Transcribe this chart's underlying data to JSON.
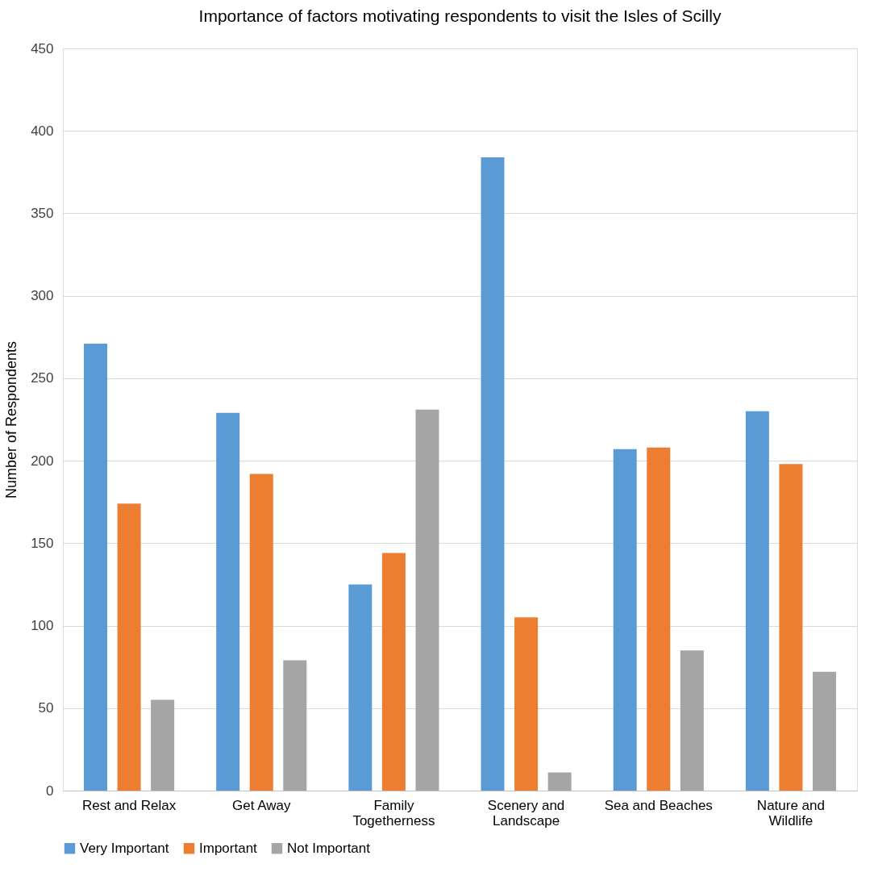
{
  "chart_data": {
    "type": "bar",
    "title": "Importance of factors motivating respondents to visit the Isles of Scilly",
    "ylabel": "Number of Respondents",
    "categories": [
      "Rest and Relax",
      "Get Away",
      "Family Togetherness",
      "Scenery and Landscape",
      "Sea and Beaches",
      "Nature and Wildlife"
    ],
    "series": [
      {
        "name": "Very Important",
        "color": "#5b9bd5",
        "values": [
          271,
          229,
          125,
          384,
          207,
          230
        ]
      },
      {
        "name": "Important",
        "color": "#ed7d31",
        "values": [
          174,
          192,
          144,
          105,
          208,
          198
        ]
      },
      {
        "name": "Not Important",
        "color": "#a5a5a5",
        "values": [
          55,
          79,
          231,
          11,
          85,
          72
        ]
      }
    ],
    "ylim": [
      0,
      450
    ],
    "yticks": [
      0,
      50,
      100,
      150,
      200,
      250,
      300,
      350,
      400,
      450
    ],
    "grid": "y",
    "legend": "bottom"
  }
}
